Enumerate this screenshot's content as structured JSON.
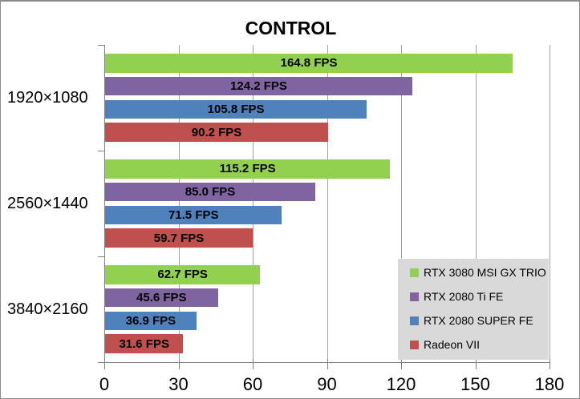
{
  "chart_data": {
    "type": "bar",
    "orientation": "horizontal",
    "title": "CONTROL",
    "categories": [
      "1920×1080",
      "2560×1440",
      "3840×2160"
    ],
    "series": [
      {
        "name": "RTX 3080 MSI GX TRIO",
        "color": "#92D050",
        "values": [
          164.8,
          115.2,
          62.7
        ],
        "value_labels": [
          "164.8 FPS",
          "115.2 FPS",
          "62.7 FPS"
        ]
      },
      {
        "name": "RTX 2080 Ti FE",
        "color": "#8064A2",
        "values": [
          124.2,
          85.0,
          45.6
        ],
        "value_labels": [
          "124.2 FPS",
          "85.0 FPS",
          "45.6 FPS"
        ]
      },
      {
        "name": "RTX 2080 SUPER FE",
        "color": "#4F81BD",
        "values": [
          105.8,
          71.5,
          36.9
        ],
        "value_labels": [
          "105.8 FPS",
          "71.5 FPS",
          "36.9 FPS"
        ]
      },
      {
        "name": "Radeon VII",
        "color": "#C0504D",
        "values": [
          90.2,
          59.7,
          31.6
        ],
        "value_labels": [
          "90.2 FPS",
          "59.7 FPS",
          "31.6 FPS"
        ]
      }
    ],
    "x_axis": {
      "min": 0,
      "max": 180,
      "tick_interval": 30,
      "tick_labels": [
        "0",
        "30",
        "60",
        "90",
        "120",
        "150",
        "180"
      ]
    },
    "ylabel": "",
    "xlabel": "",
    "grid": true,
    "legend_position": "inside-bottom-right"
  },
  "style": {
    "gridline_color": "#A3A3A3",
    "axis_color": "#7F7F7F",
    "legend_background": "#D9D9D9",
    "text_color": "#000000",
    "background": "#FFFFFF",
    "border_color": "#8C8C8C"
  }
}
